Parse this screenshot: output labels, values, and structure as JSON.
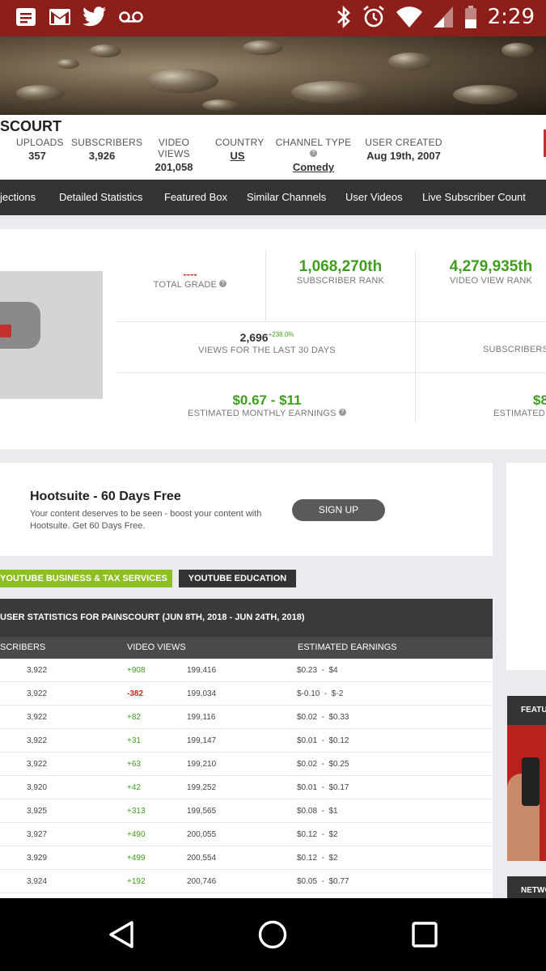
{
  "status_bar": {
    "time": "2:29",
    "left_icons": [
      "notes-icon",
      "gmail-icon",
      "twitter-icon",
      "voicemail-icon"
    ],
    "right_icons": [
      "bluetooth-icon",
      "alarm-icon",
      "wifi-icon",
      "signal-icon",
      "battery-icon"
    ],
    "color": "#8d1f1b"
  },
  "channel": {
    "name": "SCOURT",
    "stats": [
      {
        "label": "UPLOADS",
        "value": "357"
      },
      {
        "label": "SUBSCRIBERS",
        "value": "3,926"
      },
      {
        "label": "VIDEO VIEWS",
        "value": "201,058"
      },
      {
        "label": "COUNTRY",
        "value": "US"
      },
      {
        "label": "CHANNEL TYPE",
        "value": "Comedy"
      },
      {
        "label": "USER CREATED",
        "value": "Aug 19th, 2007"
      }
    ]
  },
  "nav": {
    "items": [
      "jections",
      "Detailed Statistics",
      "Featured Box",
      "Similar Channels",
      "User Videos",
      "Live Subscriber Count"
    ]
  },
  "grade": {
    "total_grade_value": "----",
    "total_grade_label": "TOTAL GRADE",
    "subscriber_rank": "1,068,270th",
    "subscriber_rank_label": "SUBSCRIBER RANK",
    "video_view_rank": "4,279,935th",
    "video_view_rank_label": "VIDEO VIEW RANK",
    "views_30": "2,696",
    "views_30_change": "+238.0%",
    "views_30_label": "VIEWS FOR THE LAST 30 DAYS",
    "subs_label_partial": "SUBSCRIBERS",
    "monthly_earnings": "$0.67 - $11",
    "monthly_earnings_label": "ESTIMATED MONTHLY EARNINGS",
    "yearly_earnings_partial": "$8",
    "yearly_label_partial": "ESTIMATED",
    "accent_green": "#3f9e1e"
  },
  "ad": {
    "title": "Hootsuite - 60 Days Free",
    "description": "Your content deserves to be seen - boost your content with Hootsuite. Get 60 Days Free.",
    "button": "SIGN UP"
  },
  "tags": {
    "business": "YOUTUBE BUSINESS & TAX SERVICES",
    "education": "YOUTUBE EDUCATION",
    "green": "#8dbe22"
  },
  "table": {
    "title": "USER STATISTICS FOR PAINSCOURT (JUN 8TH, 2018 - JUN 24TH, 2018)",
    "columns": [
      "SCRIBERS",
      "VIDEO VIEWS",
      "ESTIMATED EARNINGS"
    ],
    "rows": [
      {
        "subs": "3,922",
        "delta": "+908",
        "views": "199,416",
        "earn": "$0.23  -  $4"
      },
      {
        "subs": "3,922",
        "delta": "-382",
        "views": "199,034",
        "earn": "$-0.10  -  $-2"
      },
      {
        "subs": "3,922",
        "delta": "+82",
        "views": "199,116",
        "earn": "$0.02  -  $0.33"
      },
      {
        "subs": "3,922",
        "delta": "+31",
        "views": "199,147",
        "earn": "$0.01  -  $0.12"
      },
      {
        "subs": "3,922",
        "delta": "+63",
        "views": "199,210",
        "earn": "$0.02  -  $0.25"
      },
      {
        "subs": "3,920",
        "delta": "+42",
        "views": "199,252",
        "earn": "$0.01  -  $0.17"
      },
      {
        "subs": "3,925",
        "delta": "+313",
        "views": "199,565",
        "earn": "$0.08  -  $1"
      },
      {
        "subs": "3,927",
        "delta": "+490",
        "views": "200,055",
        "earn": "$0.12  -  $2"
      },
      {
        "subs": "3,929",
        "delta": "+499",
        "views": "200,554",
        "earn": "$0.12  -  $2"
      },
      {
        "subs": "3,924",
        "delta": "+192",
        "views": "200,746",
        "earn": "$0.05  -  $0.77"
      }
    ]
  },
  "sidebar": {
    "featured": "FEATU",
    "network": "NETWO"
  },
  "android_nav": [
    "back-icon",
    "home-icon",
    "recents-icon"
  ]
}
